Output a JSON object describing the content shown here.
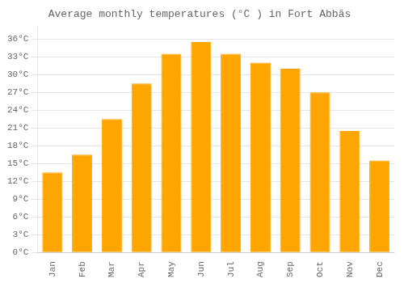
{
  "chart_data": {
    "type": "bar",
    "title": "Average monthly temperatures (°C ) in Fort Abbās",
    "categories": [
      "Jan",
      "Feb",
      "Mar",
      "Apr",
      "May",
      "Jun",
      "Jul",
      "Aug",
      "Sep",
      "Oct",
      "Nov",
      "Dec"
    ],
    "values": [
      13.5,
      16.5,
      22.5,
      28.5,
      33.5,
      35.5,
      33.5,
      32.0,
      31.0,
      27.0,
      20.5,
      15.5
    ],
    "color": "#FFA500",
    "ylim": [
      0,
      38
    ],
    "yticks": [
      {
        "value": 0,
        "label": "0°C"
      },
      {
        "value": 3,
        "label": "3°C"
      },
      {
        "value": 6,
        "label": "6°C"
      },
      {
        "value": 9,
        "label": "9°C"
      },
      {
        "value": 12,
        "label": "12°C"
      },
      {
        "value": 15,
        "label": "15°C"
      },
      {
        "value": 18,
        "label": "18°C"
      },
      {
        "value": 21,
        "label": "21°C"
      },
      {
        "value": 24,
        "label": "24°C"
      },
      {
        "value": 27,
        "label": "27°C"
      },
      {
        "value": 30,
        "label": "30°C"
      },
      {
        "value": 33,
        "label": "33°C"
      },
      {
        "value": 36,
        "label": "36°C"
      }
    ],
    "grid": "y"
  }
}
